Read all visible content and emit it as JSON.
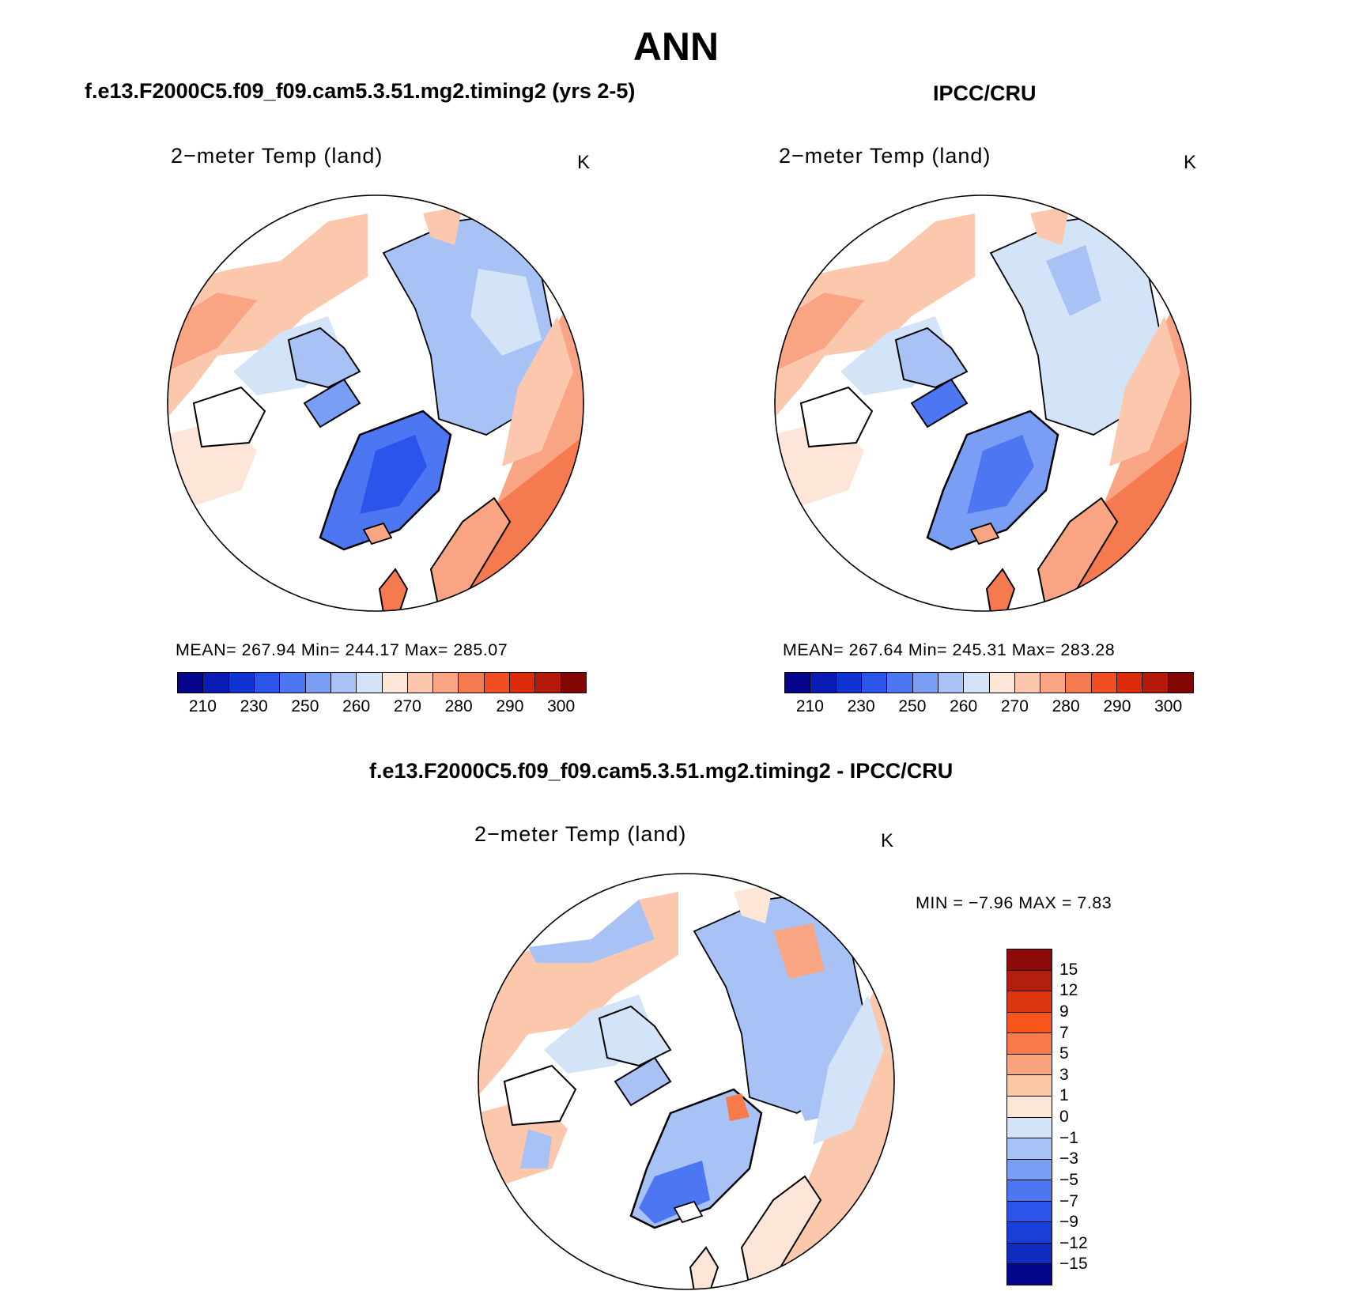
{
  "title": "ANN",
  "panels": [
    {
      "header": "f.e13.F2000C5.f09_f09.cam5.3.51.mg2.timing2 (yrs 2-5)",
      "variable": "2−meter Temp (land)",
      "units": "K",
      "stats": "MEAN=  267.94    Min=  244.17    Max=  285.07"
    },
    {
      "header": "IPCC/CRU",
      "variable": "2−meter Temp (land)",
      "units": "K",
      "stats": "MEAN=  267.64    Min=  245.31    Max=  283.28"
    },
    {
      "header": "f.e13.F2000C5.f09_f09.cam5.3.51.mg2.timing2 - IPCC/CRU",
      "variable": "2−meter Temp (land)",
      "units": "K",
      "stats": "MIN =    −7.96  MAX =     7.83"
    }
  ],
  "abs_colorbar": {
    "colors": [
      "#06068c",
      "#0a1cb4",
      "#1133d2",
      "#2b55ea",
      "#4d77f2",
      "#7b9ef5",
      "#a9c2f6",
      "#d3e4f8",
      "#fde6d8",
      "#fcc8ad",
      "#f9a482",
      "#f57a50",
      "#ef4e22",
      "#dd2c0c",
      "#b41a0a",
      "#820606"
    ],
    "ticks": [
      "210",
      "230",
      "250",
      "260",
      "270",
      "280",
      "290",
      "300"
    ]
  },
  "diff_colorbar": {
    "colors_top_to_bottom": [
      "#8c0a0a",
      "#b41e0c",
      "#dc3610",
      "#f8551c",
      "#f87a48",
      "#f9a47f",
      "#fbc8a8",
      "#fde6d8",
      "#d3e4f8",
      "#a9c2f6",
      "#7b9ef5",
      "#4d77f2",
      "#2b55ea",
      "#1a3fd8",
      "#0f2cbe",
      "#06068c"
    ],
    "ticks": [
      "15",
      "12",
      "9",
      "7",
      "5",
      "3",
      "1",
      "0",
      "−1",
      "−3",
      "−5",
      "−7",
      "−9",
      "−12",
      "−15"
    ]
  },
  "colors": {
    "land_warm_light": "#fde6d8",
    "land_warm_mid": "#f9a482",
    "land_warm_strong": "#f57a50",
    "land_cold_light": "#d3e4f8",
    "land_cold_mid": "#a9c2f6",
    "land_cold_strong": "#4d77f2",
    "coastline": "#000000"
  }
}
